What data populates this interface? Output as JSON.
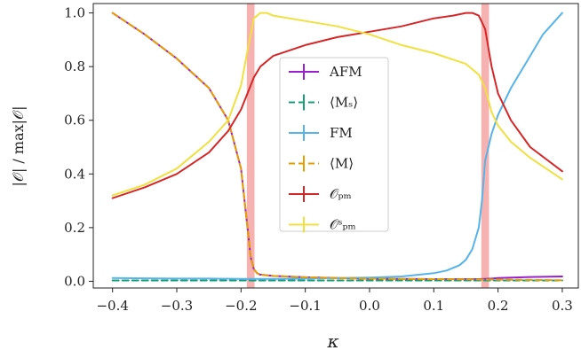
{
  "chart_data": {
    "type": "line",
    "xlabel": "κ",
    "ylabel": "|𝒪| / max|𝒪|",
    "xlim": [
      -0.43,
      0.325
    ],
    "ylim": [
      -0.025,
      1.035
    ],
    "xticks": [
      -0.4,
      -0.3,
      -0.2,
      -0.1,
      0.0,
      0.1,
      0.2,
      0.3
    ],
    "xtick_labels": [
      "−0.4",
      "−0.3",
      "−0.2",
      "−0.1",
      "0.0",
      "0.1",
      "0.2",
      "0.3"
    ],
    "yticks": [
      0.0,
      0.2,
      0.4,
      0.6,
      0.8,
      1.0
    ],
    "ytick_labels": [
      "0.0",
      "0.2",
      "0.4",
      "0.6",
      "0.8",
      "1.0"
    ],
    "legend_position": "center",
    "transitions": [
      {
        "center": -0.185,
        "width": 0.012,
        "color": "#f4a3a3"
      },
      {
        "center": 0.18,
        "width": 0.012,
        "color": "#f4a3a3"
      }
    ],
    "series": [
      {
        "name": "AFM",
        "color": "#9b1fd1",
        "dash": "solid",
        "width": 2,
        "x": [
          -0.4,
          -0.35,
          -0.3,
          -0.25,
          -0.22,
          -0.2,
          -0.19,
          -0.185,
          -0.18,
          -0.175,
          -0.17,
          -0.15,
          -0.1,
          -0.05,
          0,
          0.05,
          0.1,
          0.15,
          0.17,
          0.18,
          0.19,
          0.2,
          0.25,
          0.3
        ],
        "y": [
          1.0,
          0.92,
          0.83,
          0.72,
          0.6,
          0.42,
          0.2,
          0.09,
          0.045,
          0.03,
          0.025,
          0.02,
          0.015,
          0.012,
          0.01,
          0.009,
          0.008,
          0.008,
          0.008,
          0.009,
          0.01,
          0.012,
          0.016,
          0.018
        ]
      },
      {
        "name": "⟨Mₛ⟩",
        "color": "#1a9e77",
        "dash": "dashed",
        "width": 2,
        "x": [
          -0.4,
          -0.35,
          -0.3,
          -0.25,
          -0.2,
          -0.15,
          -0.1,
          -0.05,
          0,
          0.05,
          0.1,
          0.15,
          0.2,
          0.25,
          0.3
        ],
        "y": [
          0.003,
          0.003,
          0.003,
          0.003,
          0.003,
          0.003,
          0.003,
          0.003,
          0.003,
          0.003,
          0.003,
          0.003,
          0.003,
          0.003,
          0.003
        ]
      },
      {
        "name": "FM",
        "color": "#56b4e9",
        "dash": "solid",
        "width": 2,
        "x": [
          -0.4,
          -0.35,
          -0.3,
          -0.25,
          -0.2,
          -0.15,
          -0.1,
          -0.05,
          0,
          0.05,
          0.1,
          0.12,
          0.14,
          0.15,
          0.16,
          0.17,
          0.175,
          0.18,
          0.185,
          0.19,
          0.2,
          0.22,
          0.25,
          0.27,
          0.3
        ],
        "y": [
          0.012,
          0.011,
          0.01,
          0.01,
          0.009,
          0.009,
          0.01,
          0.012,
          0.014,
          0.018,
          0.03,
          0.04,
          0.06,
          0.08,
          0.12,
          0.2,
          0.3,
          0.45,
          0.5,
          0.55,
          0.62,
          0.72,
          0.84,
          0.92,
          1.0
        ]
      },
      {
        "name": "⟨M⟩",
        "color": "#e69f00",
        "dash": "dashed",
        "width": 2,
        "x": [
          -0.4,
          -0.35,
          -0.3,
          -0.25,
          -0.22,
          -0.2,
          -0.19,
          -0.185,
          -0.18,
          -0.175,
          -0.17,
          -0.15,
          -0.1,
          -0.05,
          0,
          0.05,
          0.1,
          0.15,
          0.2,
          0.25,
          0.3
        ],
        "y": [
          1.0,
          0.92,
          0.83,
          0.72,
          0.6,
          0.42,
          0.2,
          0.09,
          0.045,
          0.03,
          0.025,
          0.02,
          0.015,
          0.012,
          0.01,
          0.009,
          0.008,
          0.007,
          0.006,
          0.005,
          0.004
        ]
      },
      {
        "name": "𝒪ₚₘ",
        "color": "#d62728",
        "dash": "solid",
        "width": 2,
        "x": [
          -0.4,
          -0.35,
          -0.3,
          -0.25,
          -0.22,
          -0.2,
          -0.19,
          -0.18,
          -0.17,
          -0.15,
          -0.1,
          -0.05,
          0,
          0.05,
          0.1,
          0.13,
          0.15,
          0.16,
          0.17,
          0.18,
          0.19,
          0.2,
          0.22,
          0.25,
          0.3
        ],
        "y": [
          0.31,
          0.35,
          0.4,
          0.48,
          0.56,
          0.64,
          0.7,
          0.76,
          0.8,
          0.84,
          0.88,
          0.91,
          0.93,
          0.95,
          0.98,
          0.99,
          1.0,
          1.0,
          0.99,
          0.94,
          0.8,
          0.7,
          0.6,
          0.5,
          0.41
        ]
      },
      {
        "name": "𝒪ˢₚₘ",
        "color": "#f0e040",
        "dash": "solid",
        "width": 2,
        "x": [
          -0.4,
          -0.35,
          -0.3,
          -0.25,
          -0.22,
          -0.2,
          -0.19,
          -0.185,
          -0.18,
          -0.17,
          -0.16,
          -0.15,
          -0.1,
          -0.05,
          0,
          0.05,
          0.1,
          0.15,
          0.17,
          0.18,
          0.19,
          0.2,
          0.22,
          0.25,
          0.3
        ],
        "y": [
          0.32,
          0.36,
          0.42,
          0.52,
          0.6,
          0.73,
          0.86,
          0.92,
          0.98,
          1.0,
          1.0,
          0.99,
          0.97,
          0.95,
          0.92,
          0.88,
          0.85,
          0.81,
          0.77,
          0.72,
          0.63,
          0.58,
          0.52,
          0.46,
          0.38
        ]
      }
    ]
  }
}
